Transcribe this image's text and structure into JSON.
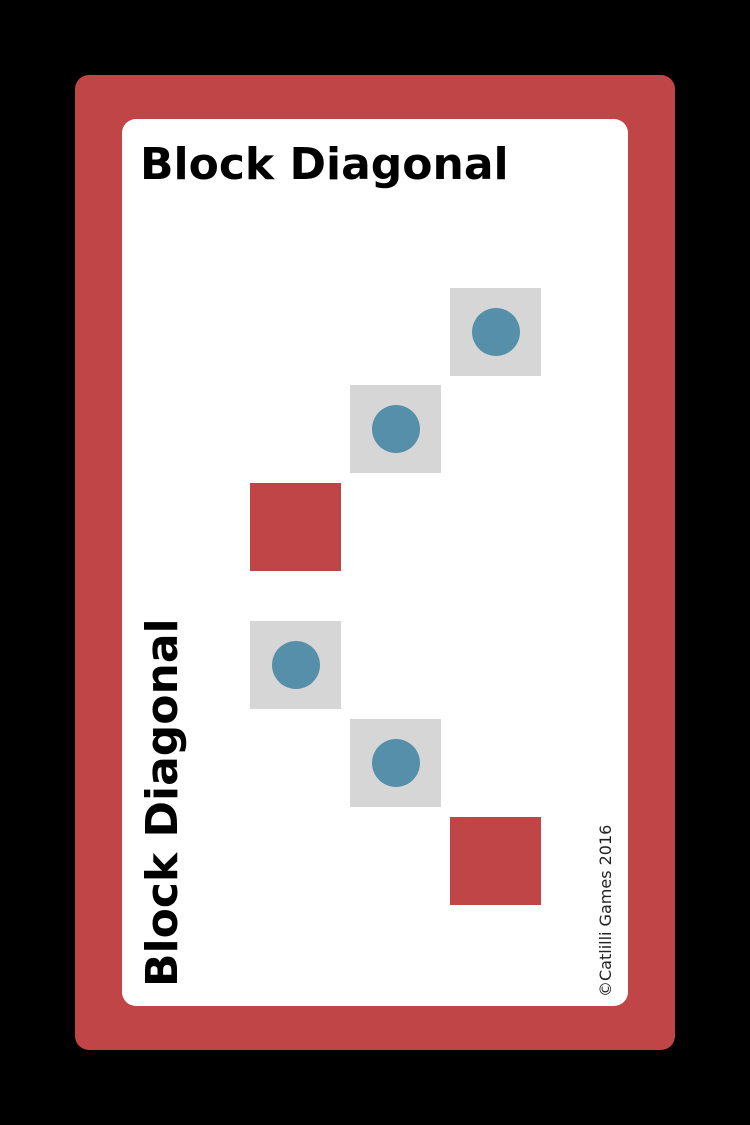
{
  "card": {
    "title": "Block Diagonal",
    "copyright": "©Catlilli Games 2016"
  },
  "colors": {
    "background": "#000000",
    "card_border": "#bf4546",
    "card_face": "#ffffff",
    "empty_tile": "#d6d6d6",
    "blocked_tile": "#bf4546",
    "piece": "#558fa9"
  },
  "pattern": {
    "upper_group": [
      "empty-with-piece",
      "empty-with-piece",
      "blocked"
    ],
    "lower_group": [
      "empty-with-piece",
      "empty-with-piece",
      "blocked"
    ]
  },
  "icons": {
    "piece": "blue-circle-piece-icon"
  }
}
